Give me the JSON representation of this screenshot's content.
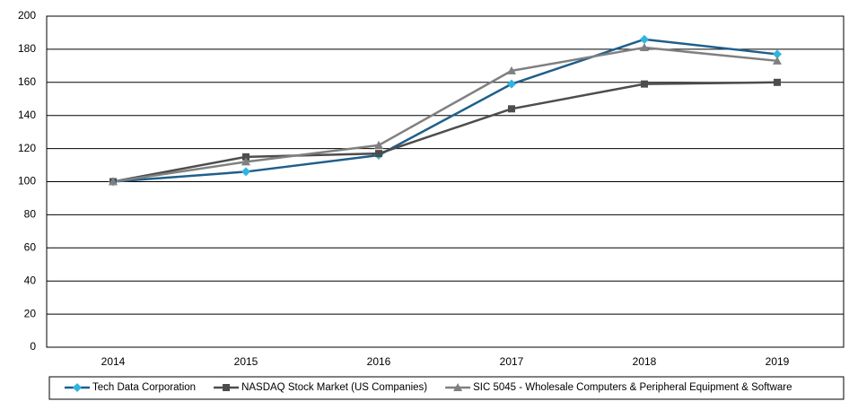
{
  "chart_data": {
    "type": "line",
    "categories": [
      "2014",
      "2015",
      "2016",
      "2017",
      "2018",
      "2019"
    ],
    "series": [
      {
        "name": "Tech Data Corporation",
        "color": "#1f5f8b",
        "marker_color": "#2fb5e0",
        "marker": "diamond",
        "values": [
          100,
          106,
          116,
          159,
          186,
          177
        ]
      },
      {
        "name": "NASDAQ Stock Market (US Companies)",
        "color": "#4d4d4f",
        "marker_color": "#4d4d4f",
        "marker": "square",
        "values": [
          100,
          115,
          117,
          144,
          159,
          160
        ]
      },
      {
        "name": "SIC 5045 - Wholesale Computers & Peripheral Equipment & Software",
        "color": "#808080",
        "marker_color": "#808080",
        "marker": "triangle",
        "values": [
          100,
          112,
          122,
          167,
          181,
          173
        ]
      }
    ],
    "ylim": [
      0,
      200
    ],
    "yticks": [
      0,
      20,
      40,
      60,
      80,
      100,
      120,
      140,
      160,
      180,
      200
    ],
    "grid": true,
    "legend": "bottom"
  }
}
